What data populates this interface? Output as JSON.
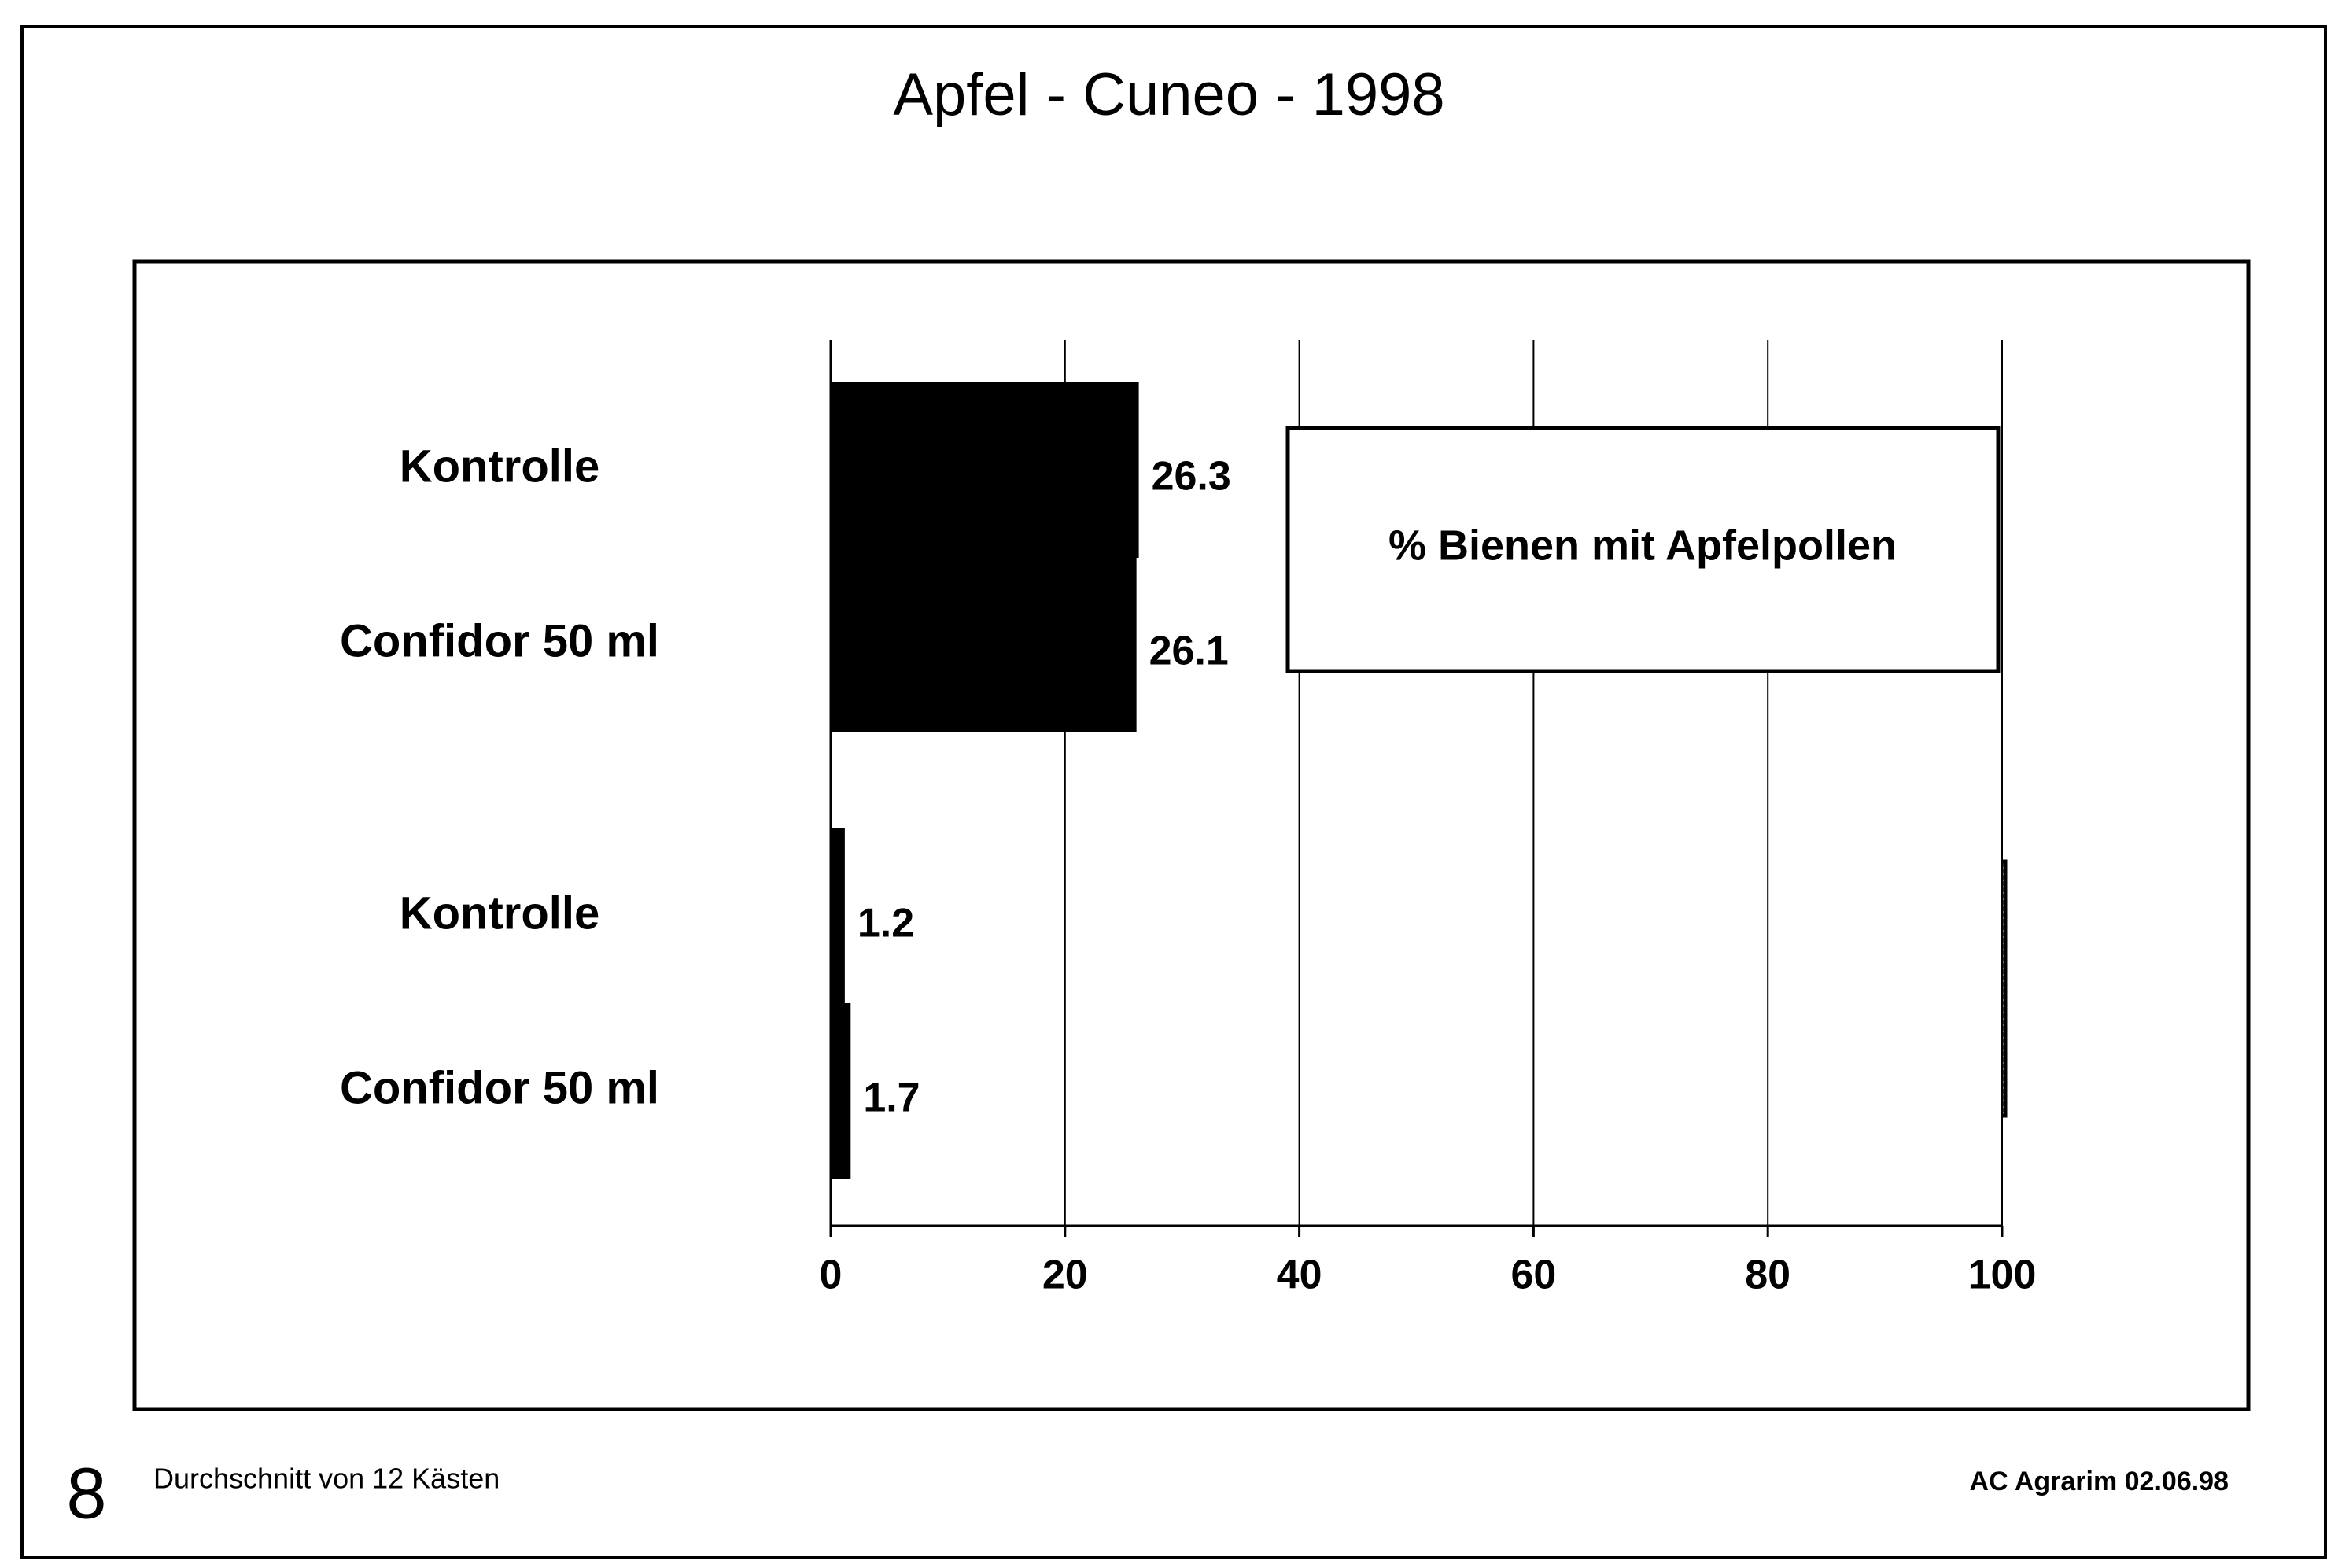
{
  "chart_data": {
    "type": "bar",
    "orientation": "horizontal",
    "title": "Apfel - Cuneo - 1998",
    "categories": [
      "Kontrolle",
      "Confidor 50 ml",
      "Kontrolle",
      "Confidor 50 ml"
    ],
    "series": [
      {
        "name": "% Bienen mit Apfelpollen",
        "color": "#000000",
        "values": [
          26.3,
          26.1,
          1.2,
          1.7
        ]
      }
    ],
    "xlim": [
      0,
      100
    ],
    "xticks": [
      0,
      20,
      40,
      60,
      80,
      100
    ],
    "grid": true,
    "footer_left_number": "8",
    "footer_note": "Durchschnitt von 12 Kästen",
    "footer_right": "AC Agrarim 02.06.98"
  }
}
